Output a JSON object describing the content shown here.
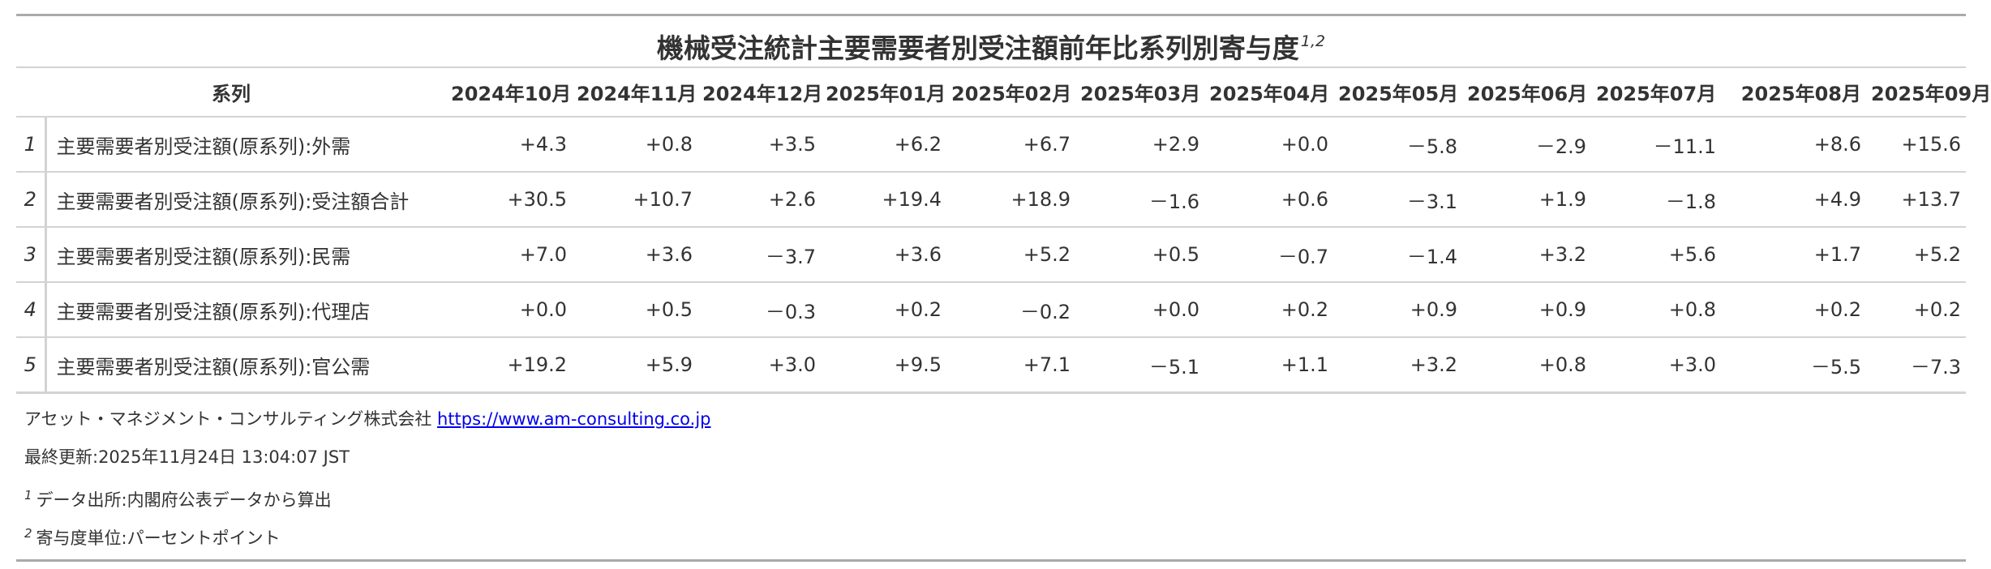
{
  "title": {
    "text": "機械受注統計主要需要者別受注額前年比系列別寄与度",
    "footnote_marks": "1,2"
  },
  "table": {
    "series_header": "系列",
    "columns": [
      "2024年10月",
      "2024年11月",
      "2024年12月",
      "2025年01月",
      "2025年02月",
      "2025年03月",
      "2025年04月",
      "2025年05月",
      "2025年06月",
      "2025年07月",
      "2025年08月",
      "2025年09月"
    ],
    "rows": [
      {
        "num": "1",
        "label": "主要需要者別受注額(原系列):外需",
        "values": [
          "+4.3",
          "+0.8",
          "+3.5",
          "+6.2",
          "+6.7",
          "+2.9",
          "+0.0",
          "－5.8",
          "－2.9",
          "－11.1",
          "+8.6",
          "+15.6"
        ]
      },
      {
        "num": "2",
        "label": "主要需要者別受注額(原系列):受注額合計",
        "values": [
          "+30.5",
          "+10.7",
          "+2.6",
          "+19.4",
          "+18.9",
          "－1.6",
          "+0.6",
          "－3.1",
          "+1.9",
          "－1.8",
          "+4.9",
          "+13.7"
        ]
      },
      {
        "num": "3",
        "label": "主要需要者別受注額(原系列):民需",
        "values": [
          "+7.0",
          "+3.6",
          "－3.7",
          "+3.6",
          "+5.2",
          "+0.5",
          "－0.7",
          "－1.4",
          "+3.2",
          "+5.6",
          "+1.7",
          "+5.2"
        ]
      },
      {
        "num": "4",
        "label": "主要需要者別受注額(原系列):代理店",
        "values": [
          "+0.0",
          "+0.5",
          "－0.3",
          "+0.2",
          "－0.2",
          "+0.0",
          "+0.2",
          "+0.9",
          "+0.9",
          "+0.8",
          "+0.2",
          "+0.2"
        ]
      },
      {
        "num": "5",
        "label": "主要需要者別受注額(原系列):官公需",
        "values": [
          "+19.2",
          "+5.9",
          "+3.0",
          "+9.5",
          "+7.1",
          "－5.1",
          "+1.1",
          "+3.2",
          "+0.8",
          "+3.0",
          "－5.5",
          "－7.3"
        ]
      }
    ]
  },
  "footer": {
    "company": "アセット・マネジメント・コンサルティング株式会社",
    "url": "https://www.am-consulting.co.jp",
    "updated": "最終更新:2025年11月24日 13:04:07 JST",
    "notes": [
      {
        "mark": "1",
        "text": "データ出所:内閣府公表データから算出"
      },
      {
        "mark": "2",
        "text": "寄与度単位:パーセントポイント"
      }
    ]
  },
  "colors": {
    "text": "#333333",
    "rule_heavy": "#aaaaaa",
    "rule_light": "#d3d3d3",
    "link": "#0000ee"
  }
}
